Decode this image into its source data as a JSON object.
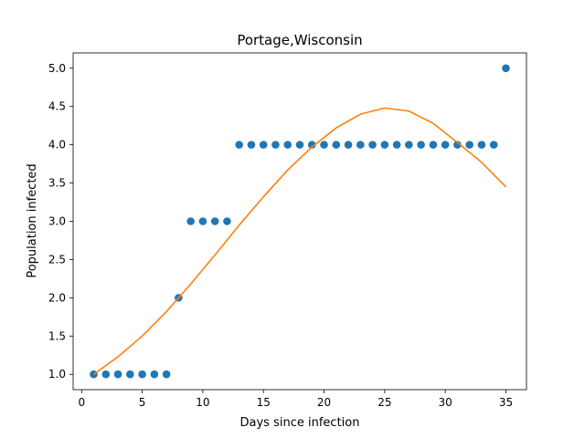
{
  "chart_data": {
    "type": "scatter",
    "title": "Portage,Wisconsin",
    "xlabel": "Days since infection",
    "ylabel": "Population infected",
    "xlim": [
      -0.7,
      36.7
    ],
    "ylim": [
      0.8,
      5.2
    ],
    "xticks": [
      0,
      5,
      10,
      15,
      20,
      25,
      30,
      35
    ],
    "xtick_labels": [
      "0",
      "5",
      "10",
      "15",
      "20",
      "25",
      "30",
      "35"
    ],
    "yticks": [
      1.0,
      1.5,
      2.0,
      2.5,
      3.0,
      3.5,
      4.0,
      4.5,
      5.0
    ],
    "ytick_labels": [
      "1.0",
      "1.5",
      "2.0",
      "2.5",
      "3.0",
      "3.5",
      "4.0",
      "4.5",
      "5.0"
    ],
    "grid": false,
    "series": [
      {
        "kind": "scatter",
        "color": "#1f77b4",
        "x": [
          1,
          2,
          3,
          4,
          5,
          6,
          7,
          8,
          9,
          10,
          11,
          12,
          13,
          14,
          15,
          16,
          17,
          18,
          19,
          20,
          21,
          22,
          23,
          24,
          25,
          26,
          27,
          28,
          29,
          30,
          31,
          32,
          33,
          34,
          35
        ],
        "y": [
          1,
          1,
          1,
          1,
          1,
          1,
          1,
          2,
          3,
          3,
          3,
          3,
          4,
          4,
          4,
          4,
          4,
          4,
          4,
          4,
          4,
          4,
          4,
          4,
          4,
          4,
          4,
          4,
          4,
          4,
          4,
          4,
          4,
          4,
          5
        ]
      },
      {
        "kind": "line",
        "color": "#ff7f0e",
        "x": [
          1,
          3,
          5,
          7,
          9,
          11,
          13,
          15,
          17,
          19,
          21,
          23,
          25,
          27,
          29,
          31,
          33,
          35
        ],
        "y": [
          1.0,
          1.23,
          1.5,
          1.82,
          2.18,
          2.56,
          2.95,
          3.32,
          3.67,
          3.97,
          4.22,
          4.4,
          4.48,
          4.44,
          4.28,
          4.03,
          3.77,
          3.45
        ]
      }
    ]
  }
}
